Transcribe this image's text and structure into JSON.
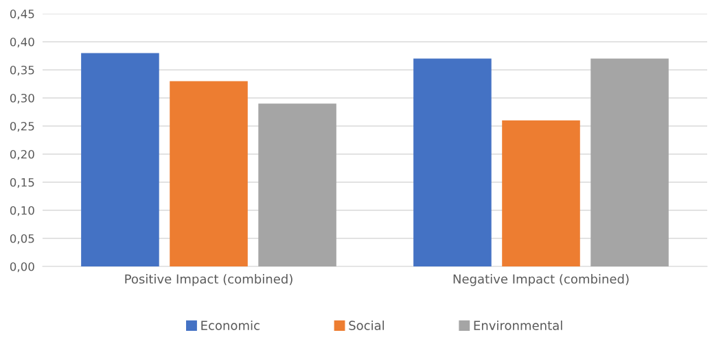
{
  "chart_data": {
    "type": "bar",
    "categories": [
      "Positive Impact (combined)",
      "Negative Impact (combined)"
    ],
    "series": [
      {
        "name": "Economic",
        "color": "#4472c4",
        "values": [
          0.38,
          0.37
        ]
      },
      {
        "name": "Social",
        "color": "#ed7d31",
        "values": [
          0.33,
          0.26
        ]
      },
      {
        "name": "Environmental",
        "color": "#a5a5a5",
        "values": [
          0.29,
          0.37
        ]
      }
    ],
    "ylim": [
      0,
      0.45
    ],
    "yticks": [
      {
        "value": 0,
        "label": "0,00"
      },
      {
        "value": 0.05,
        "label": "0,05"
      },
      {
        "value": 0.1,
        "label": "0,10"
      },
      {
        "value": 0.15,
        "label": "0,15"
      },
      {
        "value": 0.2,
        "label": "0,20"
      },
      {
        "value": 0.25,
        "label": "0,25"
      },
      {
        "value": 0.3,
        "label": "0,30"
      },
      {
        "value": 0.35,
        "label": "0,35"
      },
      {
        "value": 0.4,
        "label": "0,40"
      },
      {
        "value": 0.45,
        "label": "0,45"
      }
    ],
    "grid": "y",
    "legend": "bottom"
  }
}
